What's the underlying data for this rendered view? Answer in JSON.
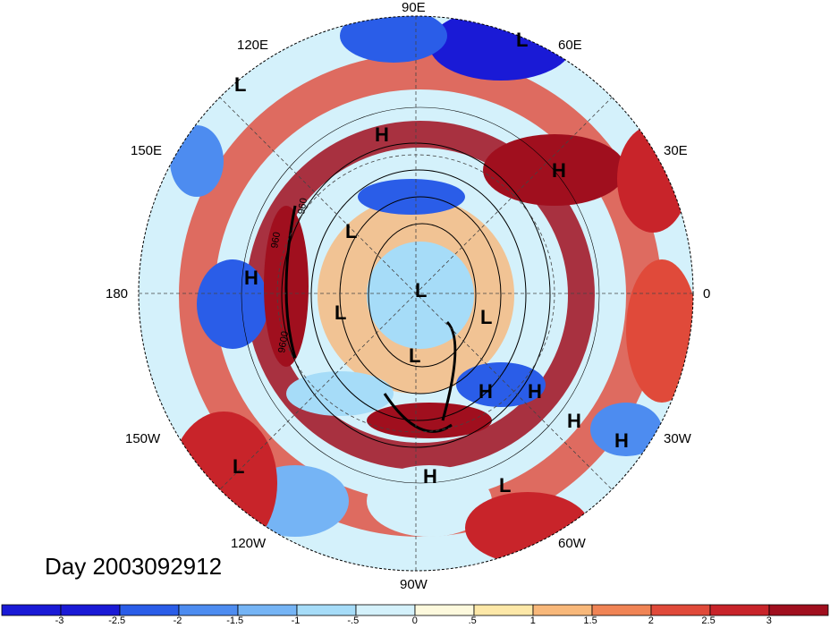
{
  "title_text": "Day 2003092912",
  "longitude_labels": [
    "90E",
    "120E",
    "60E",
    "150E",
    "30E",
    "180",
    "0",
    "150W",
    "30W",
    "120W",
    "60W",
    "90W"
  ],
  "contour_labels": [
    "960",
    "960",
    "9600"
  ],
  "pressure_systems": [
    "L",
    "L",
    "H",
    "H",
    "L",
    "H",
    "L",
    "L",
    "L",
    "L",
    "H",
    "H",
    "H",
    "H",
    "L",
    "H",
    "L"
  ],
  "colorbar": {
    "tick_labels": [
      "-3",
      "-2.5",
      "-2",
      "-1.5",
      "-1",
      "-.5",
      "0",
      ".5",
      "1",
      "1.5",
      "2",
      "2.5",
      "3"
    ],
    "colors": [
      "#1a1ad6",
      "#2a5de8",
      "#4d8cf0",
      "#75b4f5",
      "#a6dcf8",
      "#d4f1fb",
      "#fdf9dd",
      "#fde8a8",
      "#f8b87a",
      "#f08455",
      "#e04a3a",
      "#c8242a",
      "#a00f1e"
    ]
  },
  "map_colors": {
    "ocean_warm": "#a00f1e",
    "ocean_cold": "#1a1ad6",
    "land_outline": "#000000"
  }
}
